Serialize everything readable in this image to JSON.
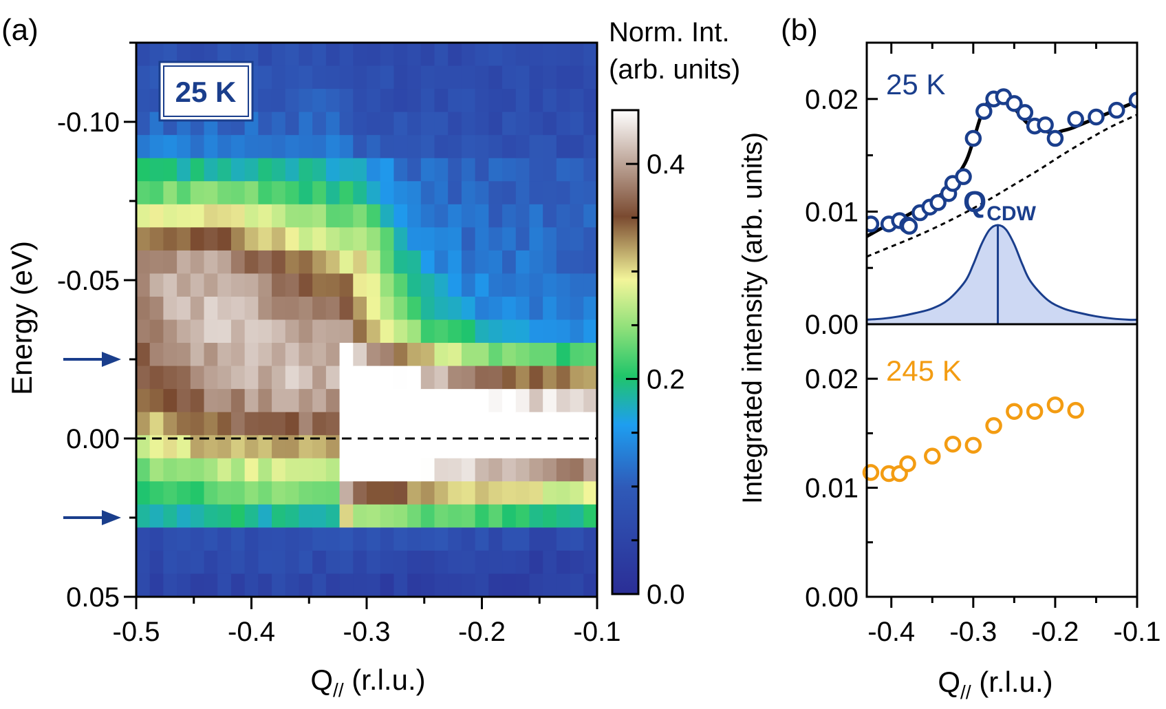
{
  "panel_a": {
    "panel_label": "(a)",
    "temperature_label": "25 K",
    "ylabel": "Energy (eV)",
    "xlabel": {
      "main": "Q",
      "sub": "//",
      "units": " (r.l.u.)"
    },
    "colorbar_title_line1": "Norm. Int.",
    "colorbar_title_line2": "(arb. units)",
    "arrow_energies": [
      -0.025,
      0.025
    ],
    "fermi_level_energy": 0.0
  },
  "panel_b": {
    "panel_label": "(b)",
    "ylabel": "Integrated intensity (arb. units)",
    "xlabel": {
      "main": "Q",
      "sub": "//",
      "units": " (r.l.u.)"
    },
    "top_label": "25 K",
    "bottom_label": "245 K",
    "qcdw_label": {
      "main": "Q",
      "sub": "CDW"
    },
    "qcdw_value": -0.27
  },
  "colors": {
    "blue": "#1a3e8c",
    "orange": "#f39c12",
    "fill": "#cdd8f3"
  },
  "chart_data": [
    {
      "type": "heatmap",
      "title": "25 K",
      "xlabel": "Q// (r.l.u.)",
      "ylabel": "Energy (eV)",
      "xlim": [
        -0.5,
        -0.1
      ],
      "ylim": [
        0.05,
        -0.125
      ],
      "xticks": [
        -0.5,
        -0.4,
        -0.3,
        -0.2,
        -0.1
      ],
      "xtick_labels": [
        "-0.5",
        "-0.4",
        "-0.3",
        "-0.2",
        "-0.1"
      ],
      "yticks": [
        -0.1,
        -0.05,
        0.0,
        0.05
      ],
      "ytick_labels": [
        "-0.10",
        "-0.05",
        "0.00",
        "0.05"
      ],
      "colorbar": {
        "label": "Norm. Int. (arb. units)",
        "range": [
          0.0,
          0.45
        ],
        "ticks": [
          0.0,
          0.2,
          0.4
        ],
        "tick_labels": [
          "0.0",
          "0.2",
          "0.4"
        ],
        "colormap": [
          "#2b2e96",
          "#2f5ab8",
          "#1e9ef0",
          "#20c56a",
          "#8fe07a",
          "#f3f59a",
          "#7a4a30",
          "#ffffff"
        ]
      },
      "description": "Intensity map: broad green/yellow band at low Q (Q < -0.35) for energies -0.09 to 0.01 eV; bright white/brown CDW feature near E = 0 eV for Q > -0.31; low (blue) intensity elsewhere."
    },
    {
      "type": "scatter",
      "title": "25 K",
      "xlabel": "Q// (r.l.u.)",
      "ylabel": "Integrated intensity (arb. units)",
      "xlim": [
        -0.43,
        -0.1
      ],
      "ylim": [
        0.0,
        0.025
      ],
      "xticks": [
        -0.4,
        -0.3,
        -0.2,
        -0.1
      ],
      "yticks": [
        0.0,
        0.01,
        0.02
      ],
      "ytick_labels": [
        "0.00",
        "0.01",
        "0.02"
      ],
      "series": [
        {
          "name": "25 K data",
          "x": [
            -0.425,
            -0.403,
            -0.39,
            -0.38,
            -0.378,
            -0.365,
            -0.353,
            -0.343,
            -0.33,
            -0.325,
            -0.312,
            -0.3,
            -0.287,
            -0.275,
            -0.263,
            -0.25,
            -0.237,
            -0.225,
            -0.212,
            -0.2,
            -0.175,
            -0.15,
            -0.125,
            -0.1
          ],
          "y": [
            0.0089,
            0.0089,
            0.0092,
            0.0088,
            0.0087,
            0.0099,
            0.0104,
            0.0108,
            0.0116,
            0.0125,
            0.0131,
            0.0165,
            0.0189,
            0.02,
            0.0202,
            0.0196,
            0.0188,
            0.0176,
            0.0177,
            0.0165,
            0.0182,
            0.0184,
            0.019,
            0.0199
          ]
        },
        {
          "name": "total fit",
          "x": [
            -0.43,
            -0.41,
            -0.39,
            -0.37,
            -0.35,
            -0.33,
            -0.31,
            -0.3,
            -0.29,
            -0.28,
            -0.27,
            -0.26,
            -0.25,
            -0.24,
            -0.23,
            -0.22,
            -0.21,
            -0.2,
            -0.19,
            -0.18,
            -0.16,
            -0.14,
            -0.12,
            -0.1
          ],
          "y": [
            0.0078,
            0.0086,
            0.0093,
            0.0101,
            0.0109,
            0.0122,
            0.0143,
            0.0163,
            0.0186,
            0.0199,
            0.0202,
            0.0199,
            0.0192,
            0.0183,
            0.0176,
            0.0173,
            0.0171,
            0.017,
            0.0172,
            0.0174,
            0.018,
            0.0186,
            0.0192,
            0.0198
          ]
        },
        {
          "name": "background",
          "x": [
            -0.43,
            -0.4,
            -0.37,
            -0.34,
            -0.31,
            -0.28,
            -0.25,
            -0.22,
            -0.19,
            -0.16,
            -0.13,
            -0.1
          ],
          "y": [
            0.006,
            0.0069,
            0.0078,
            0.0088,
            0.0099,
            0.0111,
            0.0124,
            0.0137,
            0.0151,
            0.0164,
            0.0176,
            0.0186
          ]
        },
        {
          "name": "CDW peak",
          "x": [
            -0.43,
            -0.41,
            -0.39,
            -0.37,
            -0.35,
            -0.33,
            -0.31,
            -0.3,
            -0.29,
            -0.28,
            -0.27,
            -0.26,
            -0.25,
            -0.24,
            -0.23,
            -0.21,
            -0.19,
            -0.17,
            -0.15,
            -0.13,
            -0.11,
            -0.1
          ],
          "y": [
            0.0004,
            0.0005,
            0.0007,
            0.001,
            0.0014,
            0.0022,
            0.0038,
            0.0053,
            0.0071,
            0.0084,
            0.0088,
            0.0084,
            0.0071,
            0.0053,
            0.0038,
            0.0022,
            0.0014,
            0.001,
            0.0007,
            0.0005,
            0.0004,
            0.0004
          ]
        }
      ]
    },
    {
      "type": "scatter",
      "title": "245 K",
      "xlabel": "Q// (r.l.u.)",
      "ylabel": "Integrated intensity (arb. units)",
      "xlim": [
        -0.43,
        -0.1
      ],
      "ylim": [
        0.0,
        0.025
      ],
      "xticks": [
        -0.4,
        -0.3,
        -0.2,
        -0.1
      ],
      "xtick_labels": [
        "-0.4",
        "-0.3",
        "-0.2",
        "-0.1"
      ],
      "yticks": [
        0.0,
        0.01,
        0.02
      ],
      "ytick_labels": [
        "0.00",
        "0.01",
        "0.02"
      ],
      "series": [
        {
          "name": "245 K data",
          "x": [
            -0.425,
            -0.403,
            -0.39,
            -0.38,
            -0.35,
            -0.325,
            -0.3,
            -0.275,
            -0.25,
            -0.225,
            -0.2,
            -0.175
          ],
          "y": [
            0.0114,
            0.0113,
            0.0113,
            0.0122,
            0.0129,
            0.014,
            0.0139,
            0.0157,
            0.017,
            0.017,
            0.0176,
            0.0171
          ]
        }
      ]
    }
  ]
}
